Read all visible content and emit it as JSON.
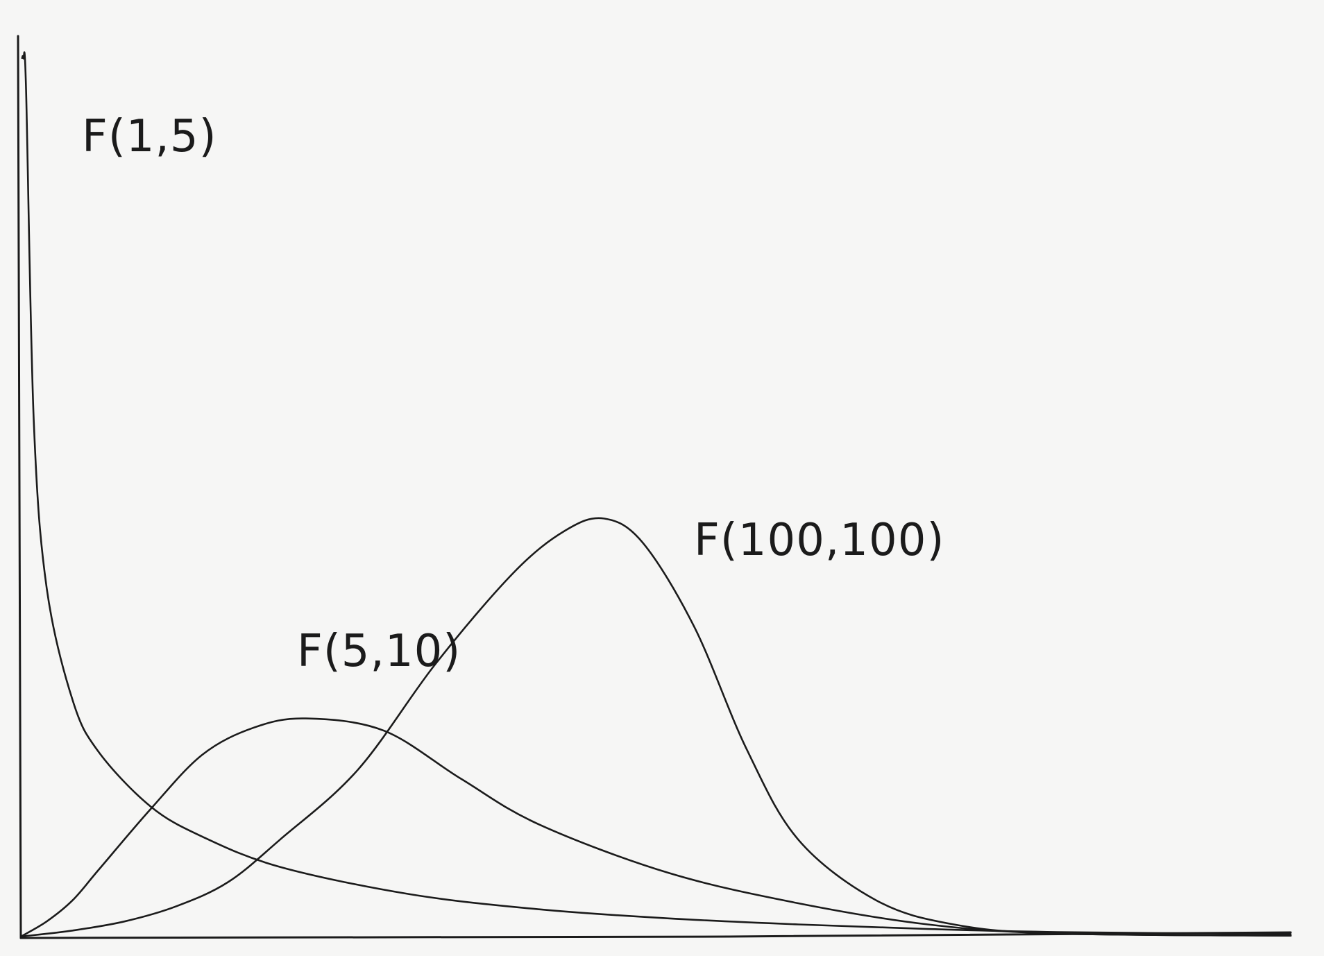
{
  "chart_data": {
    "type": "line",
    "title": "",
    "xlabel": "",
    "ylabel": "",
    "grid": false,
    "legend": "none",
    "xlim": [
      0,
      4.9
    ],
    "ylim": [
      0,
      3.0
    ],
    "series": [
      {
        "name": "F(1,5)",
        "x": [
          0.005,
          0.01,
          0.02,
          0.05,
          0.1,
          0.2,
          0.3,
          0.5,
          0.7,
          1.0,
          1.5,
          2.0,
          2.5,
          3.0,
          3.5,
          4.0,
          4.9
        ],
        "y": [
          2.9,
          2.9,
          2.8,
          1.7,
          1.15,
          0.78,
          0.61,
          0.43,
          0.33,
          0.23,
          0.14,
          0.09,
          0.06,
          0.04,
          0.025,
          0.015,
          0.008
        ]
      },
      {
        "name": "F(5,10)",
        "x": [
          0.0,
          0.1,
          0.2,
          0.3,
          0.5,
          0.7,
          0.9,
          1.1,
          1.4,
          1.7,
          2.0,
          2.5,
          3.0,
          3.5,
          4.0,
          4.9
        ],
        "y": [
          0.0,
          0.05,
          0.12,
          0.22,
          0.42,
          0.6,
          0.69,
          0.72,
          0.68,
          0.52,
          0.37,
          0.21,
          0.11,
          0.04,
          0.01,
          0.003
        ]
      },
      {
        "name": "F(100,100)",
        "x": [
          0.0,
          0.2,
          0.4,
          0.6,
          0.8,
          1.0,
          1.3,
          1.6,
          1.9,
          2.1,
          2.25,
          2.4,
          2.6,
          2.8,
          3.0,
          3.3,
          3.6,
          4.0,
          4.9
        ],
        "y": [
          0.0,
          0.02,
          0.05,
          0.1,
          0.18,
          0.32,
          0.55,
          0.9,
          1.2,
          1.34,
          1.38,
          1.3,
          1.02,
          0.62,
          0.32,
          0.12,
          0.04,
          0.01,
          0.003
        ]
      }
    ]
  }
}
